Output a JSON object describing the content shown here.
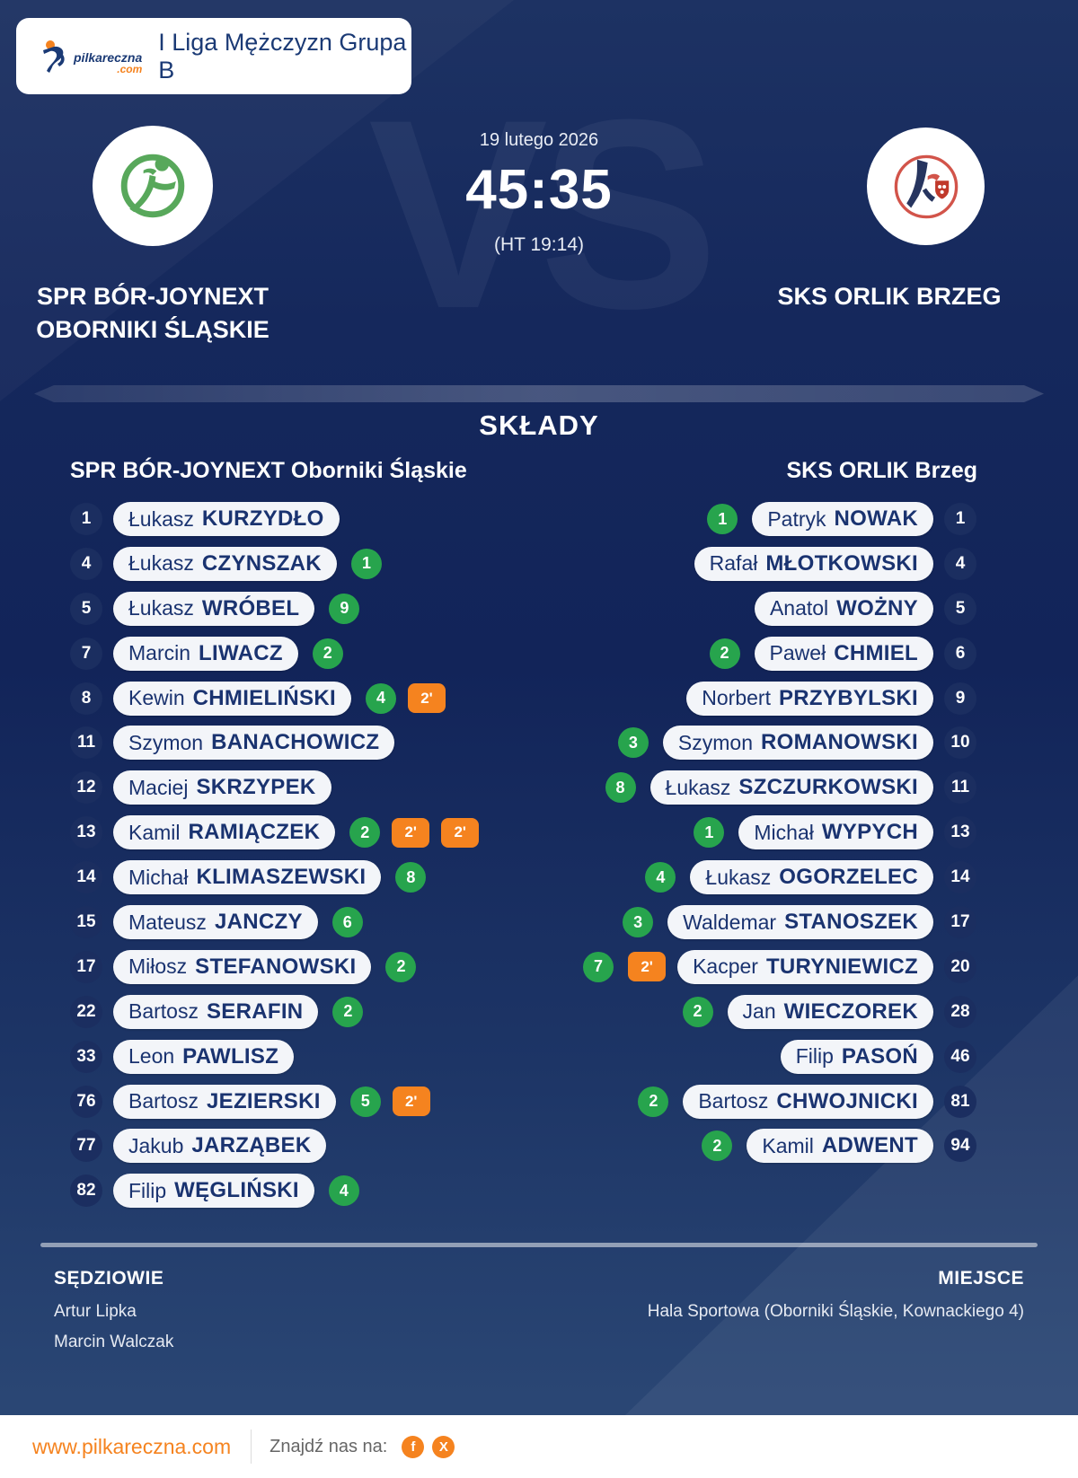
{
  "colors": {
    "accent_orange": "#f5831f",
    "goal_green": "#27a44d",
    "navy_background": "#13265a",
    "pill_text_navy": "#1a3370"
  },
  "header": {
    "brand_name": "pilkareczna",
    "brand_tld": ".com",
    "league": "I Liga Mężczyzn Grupa B"
  },
  "match": {
    "date": "19 lutego 2026",
    "score": "45:35",
    "halftime": "(HT 19:14)",
    "vs_watermark": "VS",
    "home": {
      "line1": "SPR BÓR-JOYNEXT",
      "line2": "OBORNIKI ŚLĄSKIE"
    },
    "away": {
      "line1": "SKS ORLIK BRZEG",
      "line2": ""
    }
  },
  "lineups": {
    "title": "SKŁADY",
    "home_header": "SPR BÓR-JOYNEXT Oborniki Śląskie",
    "away_header": "SKS ORLIK Brzeg",
    "suspension_label": "2'",
    "home_players": [
      {
        "number": "1",
        "first": "Łukasz",
        "last": "KURZYDŁO",
        "goals": null,
        "susp": 0
      },
      {
        "number": "4",
        "first": "Łukasz",
        "last": "CZYNSZAK",
        "goals": "1",
        "susp": 0
      },
      {
        "number": "5",
        "first": "Łukasz",
        "last": "WRÓBEL",
        "goals": "9",
        "susp": 0
      },
      {
        "number": "7",
        "first": "Marcin",
        "last": "LIWACZ",
        "goals": "2",
        "susp": 0
      },
      {
        "number": "8",
        "first": "Kewin",
        "last": "CHMIELIŃSKI",
        "goals": "4",
        "susp": 1
      },
      {
        "number": "11",
        "first": "Szymon",
        "last": "BANACHOWICZ",
        "goals": null,
        "susp": 0
      },
      {
        "number": "12",
        "first": "Maciej",
        "last": "SKRZYPEK",
        "goals": null,
        "susp": 0
      },
      {
        "number": "13",
        "first": "Kamil",
        "last": "RAMIĄCZEK",
        "goals": "2",
        "susp": 2
      },
      {
        "number": "14",
        "first": "Michał",
        "last": "KLIMASZEWSKI",
        "goals": "8",
        "susp": 0
      },
      {
        "number": "15",
        "first": "Mateusz",
        "last": "JANCZY",
        "goals": "6",
        "susp": 0
      },
      {
        "number": "17",
        "first": "Miłosz",
        "last": "STEFANOWSKI",
        "goals": "2",
        "susp": 0
      },
      {
        "number": "22",
        "first": "Bartosz",
        "last": "SERAFIN",
        "goals": "2",
        "susp": 0
      },
      {
        "number": "33",
        "first": "Leon",
        "last": "PAWLISZ",
        "goals": null,
        "susp": 0
      },
      {
        "number": "76",
        "first": "Bartosz",
        "last": "JEZIERSKI",
        "goals": "5",
        "susp": 1
      },
      {
        "number": "77",
        "first": "Jakub",
        "last": "JARZĄBEK",
        "goals": null,
        "susp": 0
      },
      {
        "number": "82",
        "first": "Filip",
        "last": "WĘGLIŃSKI",
        "goals": "4",
        "susp": 0
      }
    ],
    "away_players": [
      {
        "number": "1",
        "first": "Patryk",
        "last": "NOWAK",
        "goals": "1",
        "susp": 0
      },
      {
        "number": "4",
        "first": "Rafał",
        "last": "MŁOTKOWSKI",
        "goals": null,
        "susp": 0
      },
      {
        "number": "5",
        "first": "Anatol",
        "last": "WOŻNY",
        "goals": null,
        "susp": 0
      },
      {
        "number": "6",
        "first": "Paweł",
        "last": "CHMIEL",
        "goals": "2",
        "susp": 0
      },
      {
        "number": "9",
        "first": "Norbert",
        "last": "PRZYBYLSKI",
        "goals": null,
        "susp": 0
      },
      {
        "number": "10",
        "first": "Szymon",
        "last": "ROMANOWSKI",
        "goals": "3",
        "susp": 0
      },
      {
        "number": "11",
        "first": "Łukasz",
        "last": "SZCZURKOWSKI",
        "goals": "8",
        "susp": 0
      },
      {
        "number": "13",
        "first": "Michał",
        "last": "WYPYCH",
        "goals": "1",
        "susp": 0
      },
      {
        "number": "14",
        "first": "Łukasz",
        "last": "OGORZELEC",
        "goals": "4",
        "susp": 0
      },
      {
        "number": "17",
        "first": "Waldemar",
        "last": "STANOSZEK",
        "goals": "3",
        "susp": 0
      },
      {
        "number": "20",
        "first": "Kacper",
        "last": "TURYNIEWICZ",
        "goals": "7",
        "susp": 1
      },
      {
        "number": "28",
        "first": "Jan",
        "last": "WIECZOREK",
        "goals": "2",
        "susp": 0
      },
      {
        "number": "46",
        "first": "Filip",
        "last": "PASOŃ",
        "goals": null,
        "susp": 0
      },
      {
        "number": "81",
        "first": "Bartosz",
        "last": "CHWOJNICKI",
        "goals": "2",
        "susp": 0
      },
      {
        "number": "94",
        "first": "Kamil",
        "last": "ADWENT",
        "goals": "2",
        "susp": 0
      }
    ]
  },
  "info": {
    "referees_label": "SĘDZIOWIE",
    "referee_1": "Artur Lipka",
    "referee_2": "Marcin Walczak",
    "venue_label": "MIEJSCE",
    "venue": "Hala Sportowa (Oborniki Śląskie, Kownackiego 4)"
  },
  "footer": {
    "website": "www.pilkareczna.com",
    "find_us": "Znajdź nas na:",
    "social": [
      {
        "name": "facebook",
        "glyph": "f"
      },
      {
        "name": "x",
        "glyph": "X"
      }
    ]
  }
}
